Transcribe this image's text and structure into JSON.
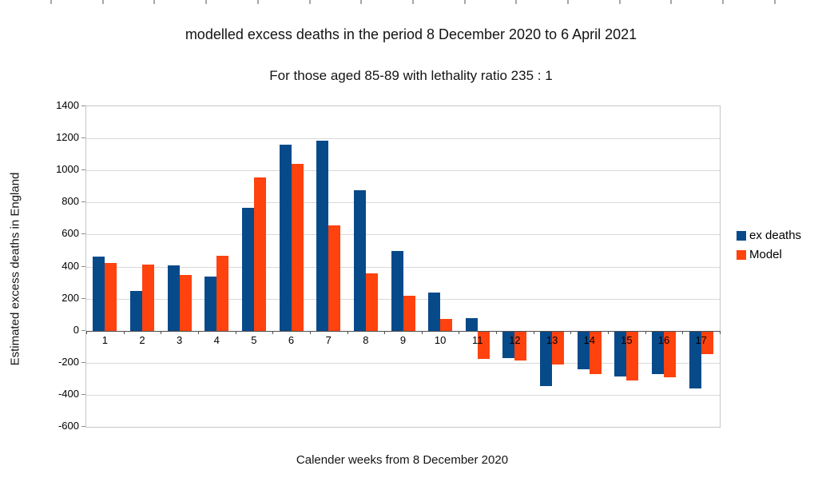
{
  "chart_data": {
    "type": "bar",
    "title": "modelled excess deaths in the period 8 December 2020 to 6 April 2021",
    "subtitle": "For those aged 85-89 with lethality ratio 235 : 1",
    "xlabel": "Calender weeks from 8 December 2020",
    "ylabel": "Estimated excess deaths in England",
    "categories": [
      "1",
      "2",
      "3",
      "4",
      "5",
      "6",
      "7",
      "8",
      "9",
      "10",
      "11",
      "12",
      "13",
      "14",
      "15",
      "16",
      "17"
    ],
    "series": [
      {
        "name": "ex deaths",
        "color": "#074a8a",
        "values": [
          460,
          250,
          405,
          340,
          765,
          1160,
          1185,
          875,
          495,
          240,
          80,
          -170,
          -345,
          -240,
          -285,
          -270,
          -360
        ]
      },
      {
        "name": "Model",
        "color": "#ff420e",
        "values": [
          420,
          410,
          350,
          465,
          955,
          1040,
          655,
          360,
          220,
          75,
          -175,
          -185,
          -210,
          -270,
          -310,
          -290,
          -145
        ]
      }
    ],
    "ylim": [
      -600,
      1400
    ],
    "ytick_step": 200,
    "grid": "horizontal",
    "legend_position": "right",
    "legend": {
      "ex_deaths_label": "ex deaths",
      "model_label": "Model"
    },
    "colors": {
      "grid": "#d9d9d9",
      "zero_axis": "#4d4d4d",
      "plot_border": "#c6c6c6"
    }
  }
}
